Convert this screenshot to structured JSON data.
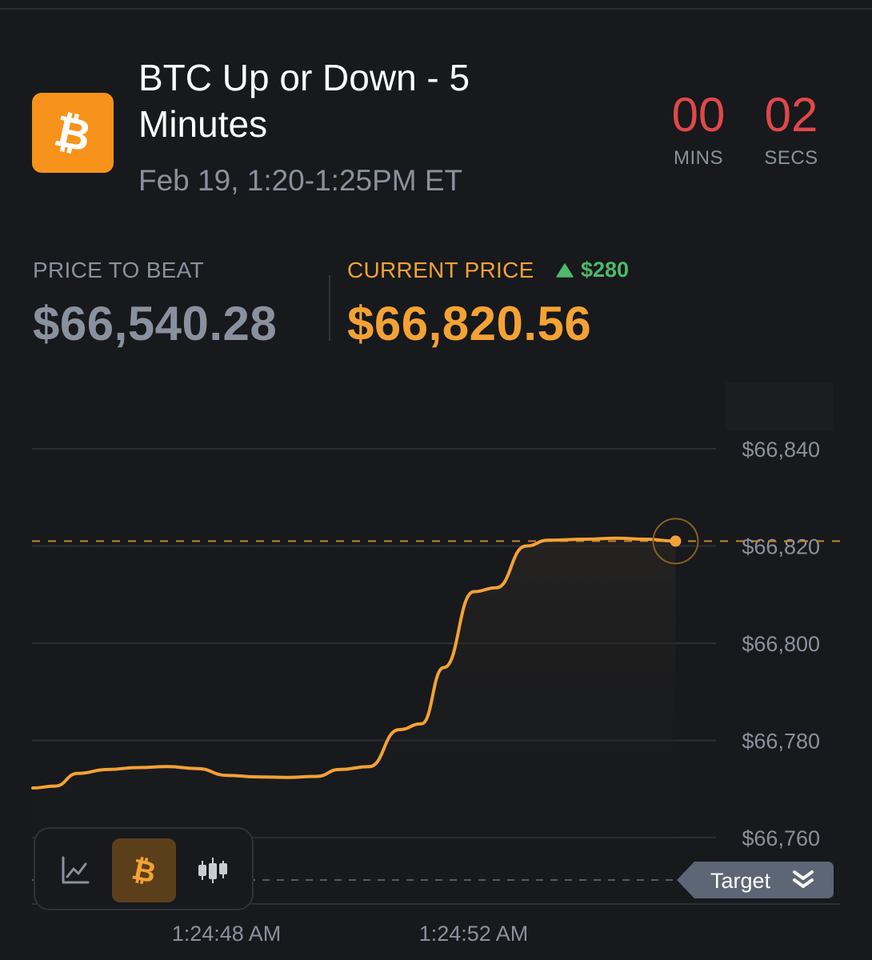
{
  "market": {
    "title": "BTC Up or Down - 5 Minutes",
    "subtitle": "Feb 19, 1:20-1:25PM ET",
    "logo_icon": "bitcoin-icon"
  },
  "countdown": {
    "mins": "00",
    "mins_label": "MINS",
    "secs": "02",
    "secs_label": "SECS"
  },
  "prices": {
    "price_to_beat_label": "PRICE TO BEAT",
    "price_to_beat": "$66,540.28",
    "current_price_label": "CURRENT PRICE",
    "current_price": "$66,820.56",
    "change": "$280",
    "change_direction": "up"
  },
  "colors": {
    "accent": "#f4a234",
    "up": "#4fb86a",
    "countdown": "#e04848",
    "muted": "#8a919e"
  },
  "toolbar": {
    "items": [
      {
        "icon": "line-chart-icon",
        "active": false
      },
      {
        "icon": "bitcoin-icon",
        "active": true
      },
      {
        "icon": "candlestick-icon",
        "active": false
      }
    ]
  },
  "target_pill": {
    "label": "Target",
    "icon": "double-chevron-down-icon"
  },
  "chart_data": {
    "type": "line",
    "title": "",
    "xlabel": "",
    "ylabel": "",
    "x_ticks": [
      "1:24:48 AM",
      "1:24:52 AM"
    ],
    "y_ticks": [
      "$66,840",
      "$66,820",
      "$66,800",
      "$66,780",
      "$66,760"
    ],
    "y_tick_values": [
      66840,
      66820,
      66800,
      66780,
      66760
    ],
    "ylim": [
      66752,
      66848
    ],
    "x_axis": "seconds",
    "xlim": [
      46.3,
      57.1
    ],
    "current_price_line": 66821,
    "target_line_label": "Target",
    "series": [
      {
        "values": [
          [
            46.3,
            66770.2
          ],
          [
            46.6,
            66770.6
          ],
          [
            46.9,
            66773.2
          ],
          [
            47.3,
            66774.0
          ],
          [
            47.7,
            66774.4
          ],
          [
            48.1,
            66774.6
          ],
          [
            48.5,
            66774.2
          ],
          [
            48.9,
            66772.8
          ],
          [
            49.3,
            66772.5
          ],
          [
            49.7,
            66772.4
          ],
          [
            50.1,
            66772.6
          ],
          [
            50.4,
            66774.0
          ],
          [
            50.8,
            66774.6
          ],
          [
            51.2,
            66782.2
          ],
          [
            51.5,
            66783.4
          ],
          [
            51.8,
            66795.0
          ],
          [
            52.2,
            66810.6
          ],
          [
            52.5,
            66811.4
          ],
          [
            52.9,
            66820.0
          ],
          [
            53.2,
            66821.2
          ],
          [
            53.7,
            66821.4
          ],
          [
            54.1,
            66821.6
          ],
          [
            54.5,
            66821.4
          ],
          [
            54.9,
            66821.0
          ]
        ]
      }
    ]
  }
}
